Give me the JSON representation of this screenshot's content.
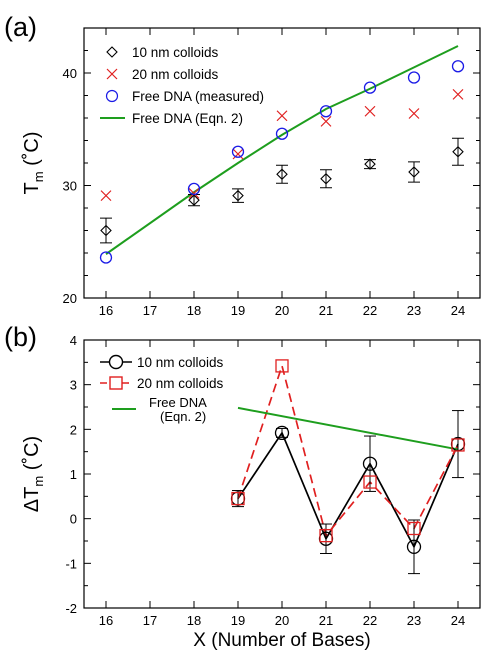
{
  "chart_data": [
    {
      "panel_label": "(a)",
      "type": "scatter",
      "x_ticks": [
        "16",
        "17",
        "18",
        "19",
        "20",
        "21",
        "22",
        "23",
        "24"
      ],
      "y_ticks": [
        "20",
        "30",
        "40"
      ],
      "xlim": [
        15.5,
        24.5
      ],
      "ylim": [
        20,
        44
      ],
      "ylabel_main": "T",
      "ylabel_sub": "m",
      "ylabel_unit": " (˚C)",
      "legend_position": "top-left",
      "series": [
        {
          "name": "10 nm colloids",
          "marker": "diamond",
          "color": "#000000",
          "x": [
            16,
            18,
            19,
            20,
            21,
            22,
            23,
            24
          ],
          "y": [
            26.0,
            28.7,
            29.1,
            31.0,
            30.6,
            31.9,
            31.2,
            33.0
          ],
          "err": [
            1.1,
            0.5,
            0.6,
            0.8,
            0.8,
            0.4,
            0.9,
            1.2
          ]
        },
        {
          "name": "20 nm colloids",
          "marker": "x",
          "color": "#e02020",
          "x": [
            16,
            18,
            19,
            20,
            21,
            22,
            23,
            24
          ],
          "y": [
            29.1,
            29.3,
            32.8,
            36.2,
            35.7,
            36.6,
            36.4,
            38.1
          ]
        },
        {
          "name": "Free DNA (measured)",
          "marker": "circle",
          "color": "#1a1ae6",
          "x": [
            16,
            18,
            19,
            20,
            21,
            22,
            23,
            24
          ],
          "y": [
            23.6,
            29.7,
            33.0,
            34.6,
            36.6,
            38.7,
            39.6,
            40.6
          ]
        },
        {
          "name": "Free DNA (Eqn. 2)",
          "marker": "line",
          "color": "#1e9e1e",
          "x": [
            16,
            18,
            19,
            20,
            21,
            22,
            23,
            24
          ],
          "y": [
            23.9,
            29.4,
            32.0,
            34.5,
            36.8,
            38.6,
            40.5,
            42.4
          ]
        }
      ]
    },
    {
      "panel_label": "(b)",
      "type": "line",
      "x_ticks": [
        "16",
        "17",
        "18",
        "19",
        "20",
        "21",
        "22",
        "23",
        "24"
      ],
      "y_ticks": [
        "-2",
        "-1",
        "0",
        "1",
        "2",
        "3",
        "4"
      ],
      "xlim": [
        15.5,
        24.5
      ],
      "ylim": [
        -2,
        4
      ],
      "xlabel": "X (Number of Bases)",
      "ylabel_main": "ΔT",
      "ylabel_sub": "m",
      "ylabel_unit": " (˚C)",
      "legend_position": "top-left",
      "series": [
        {
          "name": "10 nm colloids",
          "marker": "circle",
          "line": "solid",
          "color": "#000000",
          "x": [
            19,
            20,
            21,
            22,
            23,
            24
          ],
          "y": [
            0.45,
            1.92,
            -0.45,
            1.23,
            -0.63,
            1.67
          ],
          "err": [
            0.18,
            0.1,
            0.33,
            0.62,
            0.6,
            0.75
          ]
        },
        {
          "name": "20 nm colloids",
          "marker": "square",
          "line": "dashed",
          "color": "#e02020",
          "x": [
            19,
            20,
            21,
            22,
            23,
            24
          ],
          "y": [
            0.45,
            3.42,
            -0.38,
            0.82,
            -0.22,
            1.65
          ]
        },
        {
          "name_line1": "Free DNA",
          "name_line2": "(Eqn. 2)",
          "marker": "line",
          "line": "solid",
          "color": "#1e9e1e",
          "x": [
            19,
            24
          ],
          "y": [
            2.48,
            1.55
          ]
        }
      ]
    }
  ]
}
